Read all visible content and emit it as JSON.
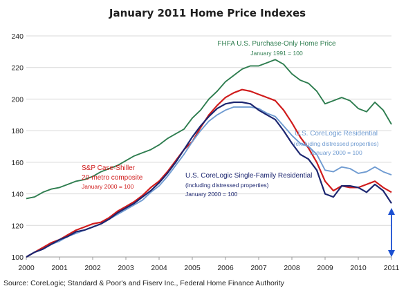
{
  "chart_data": {
    "type": "line",
    "title": "January 2011 Home Price Indexes",
    "xlabel": "",
    "ylabel": "",
    "xlim": [
      2000,
      2011
    ],
    "ylim": [
      100,
      240
    ],
    "x_ticks": [
      "2000",
      "2001",
      "2002",
      "2003",
      "2004",
      "2005",
      "2006",
      "2007",
      "2008",
      "2009",
      "2010",
      "2011"
    ],
    "y_ticks": [
      "100",
      "120",
      "140",
      "160",
      "180",
      "200",
      "220",
      "240"
    ],
    "grid": true,
    "source": "Source: CoreLogic; Standard & Poor's and Fiserv Inc., Federal Home Finance Authority",
    "series": [
      {
        "name": "FHFA U.S. Purchase-Only Home Price",
        "note": "January 1991 = 100",
        "color": "#2e7d4f",
        "points": [
          [
            2000,
            137
          ],
          [
            2000.25,
            138
          ],
          [
            2000.5,
            141
          ],
          [
            2000.75,
            143
          ],
          [
            2001,
            144
          ],
          [
            2001.25,
            146
          ],
          [
            2001.5,
            148
          ],
          [
            2001.75,
            149
          ],
          [
            2002,
            151
          ],
          [
            2002.25,
            154
          ],
          [
            2002.5,
            156
          ],
          [
            2002.75,
            158
          ],
          [
            2003,
            161
          ],
          [
            2003.25,
            164
          ],
          [
            2003.5,
            166
          ],
          [
            2003.75,
            168
          ],
          [
            2004,
            171
          ],
          [
            2004.25,
            175
          ],
          [
            2004.5,
            178
          ],
          [
            2004.75,
            181
          ],
          [
            2005,
            188
          ],
          [
            2005.25,
            193
          ],
          [
            2005.5,
            200
          ],
          [
            2005.75,
            205
          ],
          [
            2006,
            211
          ],
          [
            2006.25,
            215
          ],
          [
            2006.5,
            219
          ],
          [
            2006.75,
            221
          ],
          [
            2007,
            221
          ],
          [
            2007.25,
            223
          ],
          [
            2007.5,
            225
          ],
          [
            2007.75,
            222
          ],
          [
            2008,
            216
          ],
          [
            2008.25,
            212
          ],
          [
            2008.5,
            210
          ],
          [
            2008.75,
            205
          ],
          [
            2009,
            197
          ],
          [
            2009.25,
            199
          ],
          [
            2009.5,
            201
          ],
          [
            2009.75,
            199
          ],
          [
            2010,
            194
          ],
          [
            2010.25,
            192
          ],
          [
            2010.5,
            198
          ],
          [
            2010.75,
            193
          ],
          [
            2011,
            184
          ]
        ]
      },
      {
        "name": "S&P Case-Shiller 20-metro composite",
        "note": "January 2000 = 100",
        "color": "#d01c1c",
        "points": [
          [
            2000,
            100
          ],
          [
            2000.25,
            103
          ],
          [
            2000.5,
            106
          ],
          [
            2000.75,
            109
          ],
          [
            2001,
            111
          ],
          [
            2001.25,
            114
          ],
          [
            2001.5,
            117
          ],
          [
            2001.75,
            119
          ],
          [
            2002,
            121
          ],
          [
            2002.25,
            122
          ],
          [
            2002.5,
            125
          ],
          [
            2002.75,
            129
          ],
          [
            2003,
            132
          ],
          [
            2003.25,
            135
          ],
          [
            2003.5,
            139
          ],
          [
            2003.75,
            144
          ],
          [
            2004,
            148
          ],
          [
            2004.25,
            154
          ],
          [
            2004.5,
            161
          ],
          [
            2004.75,
            168
          ],
          [
            2005,
            173
          ],
          [
            2005.25,
            182
          ],
          [
            2005.5,
            190
          ],
          [
            2005.75,
            196
          ],
          [
            2006,
            201
          ],
          [
            2006.25,
            204
          ],
          [
            2006.5,
            206
          ],
          [
            2006.75,
            205
          ],
          [
            2007,
            203
          ],
          [
            2007.25,
            201
          ],
          [
            2007.5,
            199
          ],
          [
            2007.75,
            193
          ],
          [
            2008,
            185
          ],
          [
            2008.25,
            176
          ],
          [
            2008.5,
            169
          ],
          [
            2008.75,
            160
          ],
          [
            2009,
            148
          ],
          [
            2009.25,
            142
          ],
          [
            2009.5,
            145
          ],
          [
            2009.75,
            144
          ],
          [
            2010,
            144
          ],
          [
            2010.25,
            146
          ],
          [
            2010.5,
            148
          ],
          [
            2010.75,
            144
          ],
          [
            2011,
            141
          ]
        ]
      },
      {
        "name": "U.S. CoreLogic Residential",
        "note": "(excluding distressed properties) January 2000 = 100",
        "color": "#6f9bd1",
        "points": [
          [
            2000,
            100
          ],
          [
            2000.25,
            103
          ],
          [
            2000.5,
            105
          ],
          [
            2000.75,
            108
          ],
          [
            2001,
            110
          ],
          [
            2001.25,
            113
          ],
          [
            2001.5,
            115
          ],
          [
            2001.75,
            117
          ],
          [
            2002,
            119
          ],
          [
            2002.25,
            121
          ],
          [
            2002.5,
            124
          ],
          [
            2002.75,
            127
          ],
          [
            2003,
            130
          ],
          [
            2003.25,
            133
          ],
          [
            2003.5,
            136
          ],
          [
            2003.75,
            141
          ],
          [
            2004,
            145
          ],
          [
            2004.25,
            151
          ],
          [
            2004.5,
            158
          ],
          [
            2004.75,
            165
          ],
          [
            2005,
            173
          ],
          [
            2005.25,
            180
          ],
          [
            2005.5,
            186
          ],
          [
            2005.75,
            190
          ],
          [
            2006,
            193
          ],
          [
            2006.25,
            195
          ],
          [
            2006.5,
            195
          ],
          [
            2006.75,
            195
          ],
          [
            2007,
            194
          ],
          [
            2007.25,
            191
          ],
          [
            2007.5,
            189
          ],
          [
            2007.75,
            183
          ],
          [
            2008,
            177
          ],
          [
            2008.25,
            172
          ],
          [
            2008.5,
            170
          ],
          [
            2008.75,
            165
          ],
          [
            2009,
            155
          ],
          [
            2009.25,
            154
          ],
          [
            2009.5,
            157
          ],
          [
            2009.75,
            156
          ],
          [
            2010,
            153
          ],
          [
            2010.25,
            154
          ],
          [
            2010.5,
            157
          ],
          [
            2010.75,
            154
          ],
          [
            2011,
            152
          ]
        ]
      },
      {
        "name": "U.S. CoreLogic Single-Family Residential",
        "note": "(including distressed properties) January 2000 = 100",
        "color": "#1c2670",
        "points": [
          [
            2000,
            100
          ],
          [
            2000.25,
            103
          ],
          [
            2000.5,
            105
          ],
          [
            2000.75,
            108
          ],
          [
            2001,
            111
          ],
          [
            2001.25,
            113
          ],
          [
            2001.5,
            116
          ],
          [
            2001.75,
            117
          ],
          [
            2002,
            119
          ],
          [
            2002.25,
            121
          ],
          [
            2002.5,
            124
          ],
          [
            2002.75,
            128
          ],
          [
            2003,
            131
          ],
          [
            2003.25,
            134
          ],
          [
            2003.5,
            138
          ],
          [
            2003.75,
            142
          ],
          [
            2004,
            147
          ],
          [
            2004.25,
            153
          ],
          [
            2004.5,
            160
          ],
          [
            2004.75,
            168
          ],
          [
            2005,
            176
          ],
          [
            2005.25,
            183
          ],
          [
            2005.5,
            189
          ],
          [
            2005.75,
            194
          ],
          [
            2006,
            197
          ],
          [
            2006.25,
            198
          ],
          [
            2006.5,
            198
          ],
          [
            2006.75,
            197
          ],
          [
            2007,
            193
          ],
          [
            2007.25,
            190
          ],
          [
            2007.5,
            187
          ],
          [
            2007.75,
            180
          ],
          [
            2008,
            172
          ],
          [
            2008.25,
            165
          ],
          [
            2008.5,
            162
          ],
          [
            2008.75,
            155
          ],
          [
            2009,
            140
          ],
          [
            2009.25,
            138
          ],
          [
            2009.5,
            145
          ],
          [
            2009.75,
            145
          ],
          [
            2010,
            144
          ],
          [
            2010.25,
            141
          ],
          [
            2010.5,
            146
          ],
          [
            2010.75,
            142
          ],
          [
            2011,
            134
          ]
        ]
      }
    ]
  }
}
